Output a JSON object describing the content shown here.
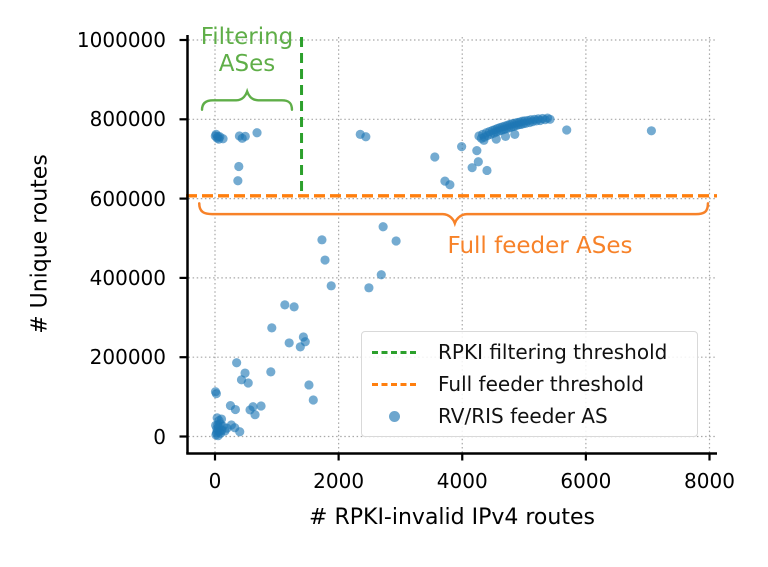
{
  "figure": {
    "annotations": {
      "filtering_line1": "Filtering",
      "filtering_line2": "ASes",
      "full_feeder_label": "Full feeder ASes"
    },
    "legend": {
      "items": [
        {
          "label": "RPKI filtering threshold",
          "type": "dash",
          "color": "#2ca02c"
        },
        {
          "label": "Full feeder threshold",
          "type": "dash",
          "color": "#ff7f0e"
        },
        {
          "label": "RV/RIS feeder AS",
          "type": "dot",
          "color": "#1f77b4"
        }
      ]
    },
    "colors": {
      "scatter": "#1f77b4",
      "scatter_opacity": "0.62",
      "green_line": "#2ca02c",
      "green_text": "#5fae48",
      "orange_line": "#ff7f0e",
      "orange_text": "#f78229",
      "grid": "#a8a8a8",
      "spine": "#000000"
    }
  },
  "chart_data": {
    "type": "scatter",
    "title": "",
    "xlabel": "# RPKI-invalid IPv4 routes",
    "ylabel": "# Unique routes",
    "xlim": [
      -440,
      8110
    ],
    "ylim": [
      -42000,
      1012000
    ],
    "xticks": [
      0,
      2000,
      4000,
      6000,
      8000
    ],
    "yticks": [
      0,
      200000,
      400000,
      600000,
      800000,
      1000000
    ],
    "grid": true,
    "legend_position": "lower right",
    "thresholds": {
      "rpki_filtering_x": 1400,
      "full_feeder_y": 607000
    },
    "braces": {
      "filtering": {
        "x_start": -210,
        "x_end": 1245,
        "y_body": 848000,
        "nub_x": 520,
        "nub_up_to": 870000,
        "end_drop_to": 824000
      },
      "full_feeder": {
        "x_start": -255,
        "x_end": 7975,
        "y_body": 561000,
        "nub_x": 3880,
        "nub_down_to": 538000,
        "end_rise_to": 588000
      }
    },
    "series": [
      {
        "name": "RV/RIS feeder AS",
        "points": [
          [
            5,
            758000
          ],
          [
            18,
            762000
          ],
          [
            32,
            753000
          ],
          [
            48,
            757000
          ],
          [
            62,
            750000
          ],
          [
            78,
            756000
          ],
          [
            130,
            751000
          ],
          [
            395,
            758000
          ],
          [
            440,
            752000
          ],
          [
            490,
            757000
          ],
          [
            680,
            766000
          ],
          [
            385,
            681000
          ],
          [
            370,
            645000
          ],
          [
            2350,
            762000
          ],
          [
            2440,
            756000
          ],
          [
            3556,
            705000
          ],
          [
            3720,
            644000
          ],
          [
            3800,
            635000
          ],
          [
            3990,
            731000
          ],
          [
            4236,
            721000
          ],
          [
            4160,
            678000
          ],
          [
            4260,
            693000
          ],
          [
            4400,
            671000
          ],
          [
            5690,
            773000
          ],
          [
            7060,
            771000
          ],
          [
            4270,
            758000
          ],
          [
            4310,
            752000
          ],
          [
            4330,
            762000
          ],
          [
            4360,
            755000
          ],
          [
            4390,
            766000
          ],
          [
            4410,
            759000
          ],
          [
            4440,
            769000
          ],
          [
            4460,
            762000
          ],
          [
            4490,
            772000
          ],
          [
            4510,
            765000
          ],
          [
            4530,
            774000
          ],
          [
            4550,
            768000
          ],
          [
            4570,
            777000
          ],
          [
            4590,
            770000
          ],
          [
            4610,
            779000
          ],
          [
            4630,
            772000
          ],
          [
            4650,
            781000
          ],
          [
            4670,
            774000
          ],
          [
            4690,
            783000
          ],
          [
            4710,
            776000
          ],
          [
            4730,
            785000
          ],
          [
            4750,
            778000
          ],
          [
            4770,
            787000
          ],
          [
            4790,
            780000
          ],
          [
            4810,
            789000
          ],
          [
            4830,
            782000
          ],
          [
            4850,
            790000
          ],
          [
            4870,
            784000
          ],
          [
            4890,
            792000
          ],
          [
            4910,
            786000
          ],
          [
            4930,
            793000
          ],
          [
            4950,
            787000
          ],
          [
            4970,
            795000
          ],
          [
            4990,
            789000
          ],
          [
            5010,
            796000
          ],
          [
            5030,
            790000
          ],
          [
            5060,
            797000
          ],
          [
            5090,
            792000
          ],
          [
            5110,
            799000
          ],
          [
            5140,
            794000
          ],
          [
            5170,
            800000
          ],
          [
            5200,
            796000
          ],
          [
            5230,
            801000
          ],
          [
            5260,
            797000
          ],
          [
            5300,
            802000
          ],
          [
            5340,
            799000
          ],
          [
            5380,
            803000
          ],
          [
            5420,
            800000
          ],
          [
            4350,
            747000
          ],
          [
            4550,
            750000
          ],
          [
            4700,
            757000
          ],
          [
            4850,
            762000
          ],
          [
            2720,
            529000
          ],
          [
            1730,
            496000
          ],
          [
            2930,
            493000
          ],
          [
            1780,
            445000
          ],
          [
            2690,
            408000
          ],
          [
            1880,
            380000
          ],
          [
            2490,
            375000
          ],
          [
            1130,
            332000
          ],
          [
            1280,
            327000
          ],
          [
            919,
            274000
          ],
          [
            1430,
            251000
          ],
          [
            1460,
            239000
          ],
          [
            1200,
            236000
          ],
          [
            1380,
            226000
          ],
          [
            350,
            186000
          ],
          [
            903,
            163000
          ],
          [
            486,
            160000
          ],
          [
            429,
            143000
          ],
          [
            537,
            135000
          ],
          [
            1520,
            130000
          ],
          [
            1590,
            92000
          ],
          [
            8,
            113000
          ],
          [
            22,
            108000
          ],
          [
            250,
            78000
          ],
          [
            330,
            68000
          ],
          [
            615,
            75000
          ],
          [
            745,
            77000
          ],
          [
            567,
            67000
          ],
          [
            648,
            55000
          ],
          [
            15,
            4000
          ],
          [
            25,
            9000
          ],
          [
            40,
            14000
          ],
          [
            30,
            20000
          ],
          [
            55,
            24000
          ],
          [
            45,
            30000
          ],
          [
            70,
            12000
          ],
          [
            90,
            8000
          ],
          [
            110,
            16000
          ],
          [
            85,
            32000
          ],
          [
            65,
            40000
          ],
          [
            105,
            44000
          ],
          [
            130,
            26000
          ],
          [
            160,
            14000
          ],
          [
            195,
            21000
          ],
          [
            320,
            22000
          ],
          [
            400,
            12000
          ],
          [
            265,
            29000
          ],
          [
            50,
            2000
          ],
          [
            10,
            28000
          ],
          [
            35,
            47000
          ]
        ]
      }
    ]
  }
}
